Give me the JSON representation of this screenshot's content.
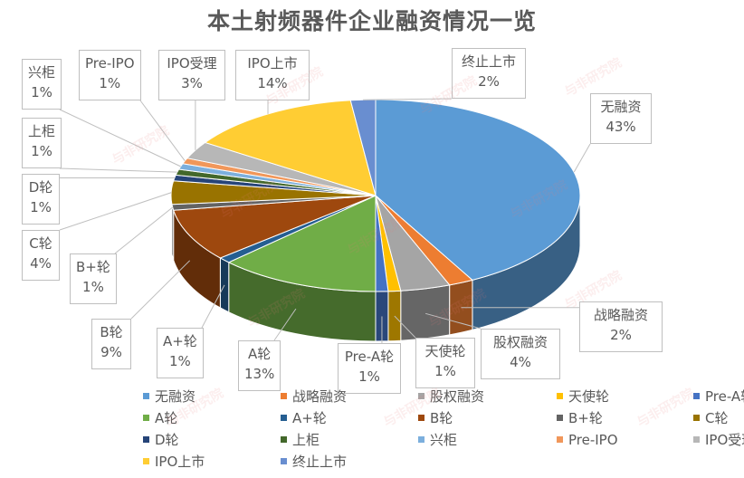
{
  "chart_data": {
    "type": "pie",
    "variant": "3d-pie",
    "title": "本土射频器件企业融资情况一览",
    "categories": [
      "无融资",
      "战略融资",
      "股权融资",
      "天使轮",
      "Pre-A轮",
      "A轮",
      "A+轮",
      "B轮",
      "B+轮",
      "C轮",
      "D轮",
      "上柜",
      "兴柜",
      "Pre-IPO",
      "IPO受理",
      "IPO上市",
      "终止上市"
    ],
    "values": [
      43,
      2,
      4,
      1,
      1,
      13,
      1,
      9,
      1,
      4,
      1,
      1,
      1,
      1,
      3,
      14,
      2
    ],
    "labels": [
      "43%",
      "2%",
      "4%",
      "1%",
      "1%",
      "13%",
      "1%",
      "9%",
      "1%",
      "4%",
      "1%",
      "1%",
      "1%",
      "1%",
      "3%",
      "14%",
      "2%"
    ],
    "colors": [
      "#5B9BD5",
      "#ED7D31",
      "#A5A5A5",
      "#FFC000",
      "#4472C4",
      "#70AD47",
      "#255E91",
      "#9E480E",
      "#636363",
      "#997300",
      "#264478",
      "#43682B",
      "#7CAFDD",
      "#F1975A",
      "#B7B7B7",
      "#FFCD33",
      "#698ED0"
    ],
    "legend_position": "bottom",
    "unit": "%"
  },
  "title": "本土射频器件企业融资情况一览",
  "watermark": "与非研究院"
}
